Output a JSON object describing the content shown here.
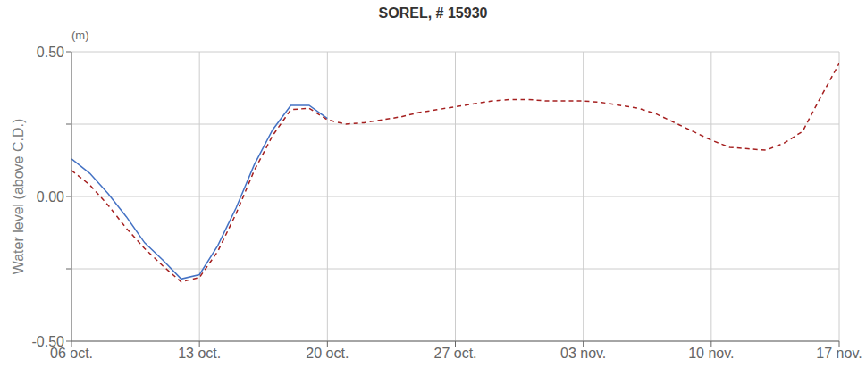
{
  "chart_data": {
    "type": "line",
    "title": "SOREL, # 15930",
    "y_label": "Water level (above C.D.)",
    "annotations": [
      {
        "text": "(m)"
      }
    ],
    "xlim": [
      0,
      42
    ],
    "xticks": [
      {
        "value": 0,
        "label": "06 oct."
      },
      {
        "value": 7,
        "label": "13 oct."
      },
      {
        "value": 14,
        "label": "20 oct."
      },
      {
        "value": 21,
        "label": "27 oct."
      },
      {
        "value": 28,
        "label": "03 nov."
      },
      {
        "value": 35,
        "label": "10 nov."
      },
      {
        "value": 42,
        "label": "17 nov."
      }
    ],
    "ylim": [
      -0.5,
      0.5
    ],
    "yticks": [
      {
        "value": -0.5,
        "label": "-0.50"
      },
      {
        "value": -0.25,
        "label": null
      },
      {
        "value": 0,
        "label": "0.00"
      },
      {
        "value": 0.25,
        "label": null
      },
      {
        "value": 0.5,
        "label": "0.50"
      }
    ],
    "grid": true,
    "series": [
      {
        "color": "#4472c4",
        "line_style": "solid",
        "x": [
          0,
          1,
          2,
          3,
          4,
          5,
          6,
          7,
          8,
          9,
          10,
          11,
          12,
          13,
          14
        ],
        "values": [
          0.13,
          0.08,
          0.01,
          -0.07,
          -0.16,
          -0.22,
          -0.285,
          -0.27,
          -0.17,
          -0.04,
          0.11,
          0.23,
          0.315,
          0.315,
          0.27
        ]
      },
      {
        "color": "#a52020",
        "line_style": "dashed",
        "x": [
          0,
          1,
          2,
          3,
          4,
          5,
          6,
          7,
          8,
          9,
          10,
          11,
          12,
          13,
          14,
          15,
          16,
          17,
          18,
          19,
          20,
          21,
          22,
          23,
          24,
          25,
          26,
          27,
          28,
          29,
          30,
          31,
          32,
          33,
          34,
          35,
          36,
          37,
          38,
          39,
          40,
          41,
          42
        ],
        "values": [
          0.09,
          0.04,
          -0.03,
          -0.11,
          -0.18,
          -0.24,
          -0.295,
          -0.28,
          -0.19,
          -0.06,
          0.09,
          0.21,
          0.3,
          0.305,
          0.265,
          0.25,
          0.255,
          0.265,
          0.275,
          0.29,
          0.3,
          0.31,
          0.32,
          0.33,
          0.335,
          0.335,
          0.33,
          0.33,
          0.33,
          0.325,
          0.315,
          0.305,
          0.285,
          0.255,
          0.225,
          0.195,
          0.17,
          0.165,
          0.16,
          0.185,
          0.225,
          0.345,
          0.46
        ]
      }
    ]
  }
}
